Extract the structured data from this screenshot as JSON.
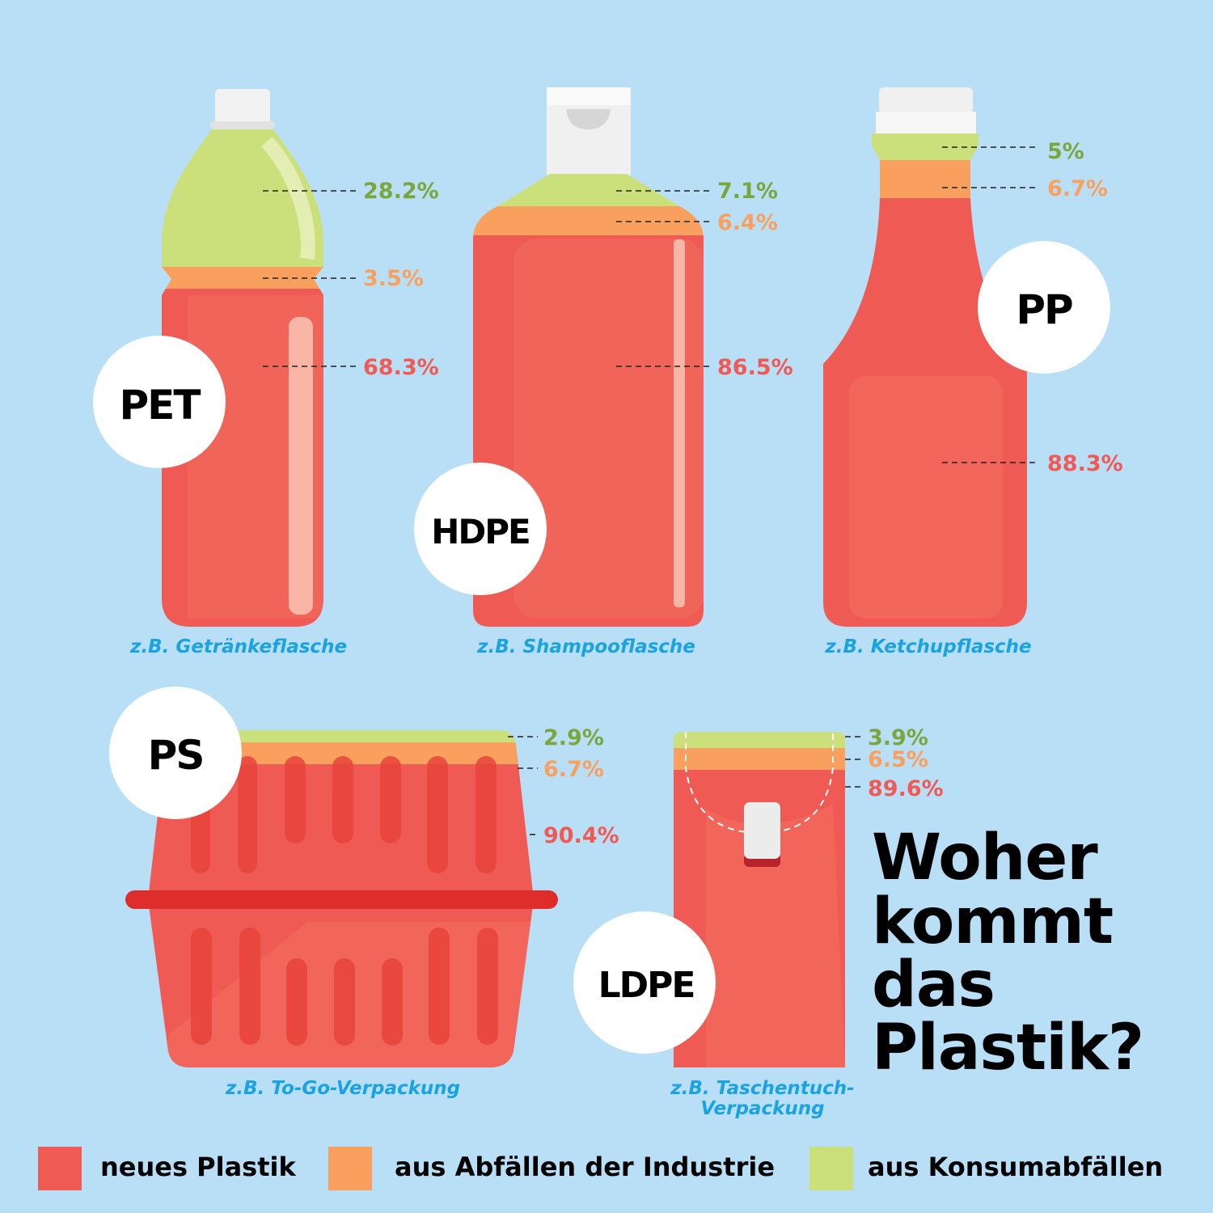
{
  "colors": {
    "background": "#b9dff7",
    "new": "#f05a54",
    "industry": "#f9a05e",
    "consumer": "#cbe07a",
    "consumer_text": "#7aa63e",
    "caption": "#1aa3e0"
  },
  "title_lines": [
    "Woher",
    "kommt",
    "das",
    "Plastik?"
  ],
  "legend": [
    {
      "label": "neues Plastik",
      "color": "#f05a54"
    },
    {
      "label": "aus Abfällen der Industrie",
      "color": "#f9a05e"
    },
    {
      "label": "aus Konsumabfällen",
      "color": "#cbe07a"
    }
  ],
  "chart_data": {
    "type": "stacked-share infographic",
    "title": "Woher kommt das Plastik?",
    "unit": "%",
    "series_names": [
      "neues Plastik",
      "aus Abfällen der Industrie",
      "aus Konsumabfällen"
    ],
    "products": [
      {
        "label": "PET",
        "caption": "z.B. Getränkeflasche",
        "new": "68.3%",
        "industry": "3.5%",
        "consumer": "28.2%"
      },
      {
        "label": "HDPE",
        "caption": "z.B. Shampooflasche",
        "new": "86.5%",
        "industry": "6.4%",
        "consumer": "7.1%"
      },
      {
        "label": "PP",
        "caption": "z.B. Ketchupflasche",
        "new": "88.3%",
        "industry": "6.7%",
        "consumer": "5%"
      },
      {
        "label": "PS",
        "caption": "z.B. To-Go-Verpackung",
        "new": "90.4%",
        "industry": "6.7%",
        "consumer": "2.9%"
      },
      {
        "label": "LDPE",
        "caption": "z.B. Taschentuch-",
        "caption2": "Verpackung",
        "new": "89.6%",
        "industry": "6.5%",
        "consumer": "3.9%"
      }
    ],
    "values": {
      "PET": [
        68.3,
        3.5,
        28.2
      ],
      "HDPE": [
        86.5,
        6.4,
        7.1
      ],
      "PP": [
        88.3,
        6.7,
        5
      ],
      "PS": [
        90.4,
        6.7,
        2.9
      ],
      "LDPE": [
        89.6,
        6.5,
        3.9
      ]
    },
    "legend_position": "bottom"
  }
}
